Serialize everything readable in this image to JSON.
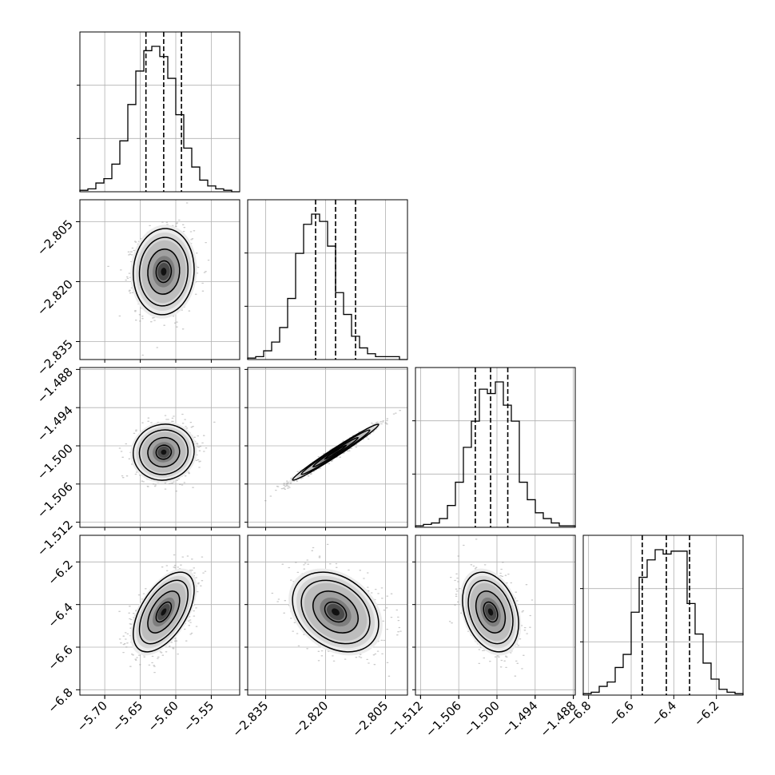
{
  "colors": {
    "background": "#ffffff",
    "axis": "#000000",
    "grid": "#b0b0b0",
    "scatter": "#8a8a8a",
    "contour": "#000000"
  },
  "chart_data": {
    "type": "corner",
    "title": "",
    "grid": true,
    "n_params": 4,
    "parameters": [
      {
        "label": "",
        "range": [
          -5.735,
          -5.51
        ],
        "ticks": [
          -5.7,
          -5.65,
          -5.6,
          -5.55
        ],
        "tick_labels": [
          "−5.70",
          "−5.65",
          "−5.60",
          "−5.55"
        ],
        "histogram": {
          "bin_edges_start": -5.735,
          "bin_width": 0.01125,
          "values": [
            0.01,
            0.02,
            0.06,
            0.09,
            0.19,
            0.35,
            0.6,
            0.83,
            0.97,
            1.0,
            0.93,
            0.78,
            0.53,
            0.3,
            0.17,
            0.08,
            0.04,
            0.02,
            0.01,
            0.0
          ]
        },
        "quantiles": [
          -5.642,
          -5.617,
          -5.592
        ]
      },
      {
        "label": "",
        "range": [
          -2.8395,
          -2.7995
        ],
        "ticks": [
          -2.835,
          -2.82,
          -2.805
        ],
        "tick_labels": [
          "−2.835",
          "−2.820",
          "−2.805"
        ],
        "histogram": {
          "bin_edges_start": -2.8395,
          "bin_width": 0.002,
          "values": [
            0.01,
            0.02,
            0.06,
            0.12,
            0.22,
            0.42,
            0.73,
            0.93,
            1.0,
            0.95,
            0.78,
            0.46,
            0.31,
            0.16,
            0.08,
            0.04,
            0.02,
            0.02,
            0.02,
            0.0
          ]
        },
        "quantiles": [
          -2.8225,
          -2.8175,
          -2.8125
        ]
      },
      {
        "label": "",
        "range": [
          -1.5128,
          -1.4877
        ],
        "ticks": [
          -1.512,
          -1.506,
          -1.5,
          -1.494,
          -1.488
        ],
        "tick_labels": [
          "−1.512",
          "−1.506",
          "−1.500",
          "−1.494",
          "−1.488"
        ],
        "histogram": {
          "bin_edges_start": -1.5128,
          "bin_width": 0.001255,
          "values": [
            0.01,
            0.02,
            0.03,
            0.06,
            0.15,
            0.31,
            0.55,
            0.73,
            0.95,
            0.92,
            1.0,
            0.84,
            0.73,
            0.31,
            0.19,
            0.1,
            0.06,
            0.03,
            0.01,
            0.01
          ]
        },
        "quantiles": [
          -1.5034,
          -1.501,
          -1.4983
        ]
      },
      {
        "label": "",
        "range": [
          -6.825,
          -6.075
        ],
        "ticks": [
          -6.8,
          -6.6,
          -6.4,
          -6.2
        ],
        "tick_labels": [
          "−6.8",
          "−6.6",
          "−6.4",
          "−6.2"
        ],
        "histogram": {
          "bin_edges_start": -6.825,
          "bin_width": 0.0375,
          "values": [
            0.01,
            0.02,
            0.06,
            0.09,
            0.19,
            0.28,
            0.57,
            0.81,
            0.93,
            1.0,
            0.97,
            0.99,
            0.99,
            0.63,
            0.42,
            0.22,
            0.11,
            0.04,
            0.02,
            0.01
          ]
        },
        "quantiles": [
          -6.548,
          -6.435,
          -6.326
        ]
      }
    ],
    "pairs": [
      {
        "row": 1,
        "col": 0,
        "mean": [
          -5.617,
          -2.8175
        ],
        "sd": [
          0.0195,
          0.0049
        ],
        "rho": 0.05
      },
      {
        "row": 2,
        "col": 0,
        "mean": [
          -5.617,
          -1.501
        ],
        "sd": [
          0.0195,
          0.002
        ],
        "rho": 0.05
      },
      {
        "row": 2,
        "col": 1,
        "mean": [
          -2.8175,
          -1.501
        ],
        "sd": [
          0.0049,
          0.002
        ],
        "rho": 0.985
      },
      {
        "row": 3,
        "col": 0,
        "mean": [
          -5.617,
          -6.435
        ],
        "sd": [
          0.0195,
          0.085
        ],
        "rho": 0.55
      },
      {
        "row": 3,
        "col": 1,
        "mean": [
          -2.8175,
          -6.435
        ],
        "sd": [
          0.0049,
          0.085
        ],
        "rho": -0.3
      },
      {
        "row": 3,
        "col": 2,
        "mean": [
          -1.501,
          -6.435
        ],
        "sd": [
          0.002,
          0.085
        ],
        "rho": -0.3
      }
    ]
  }
}
